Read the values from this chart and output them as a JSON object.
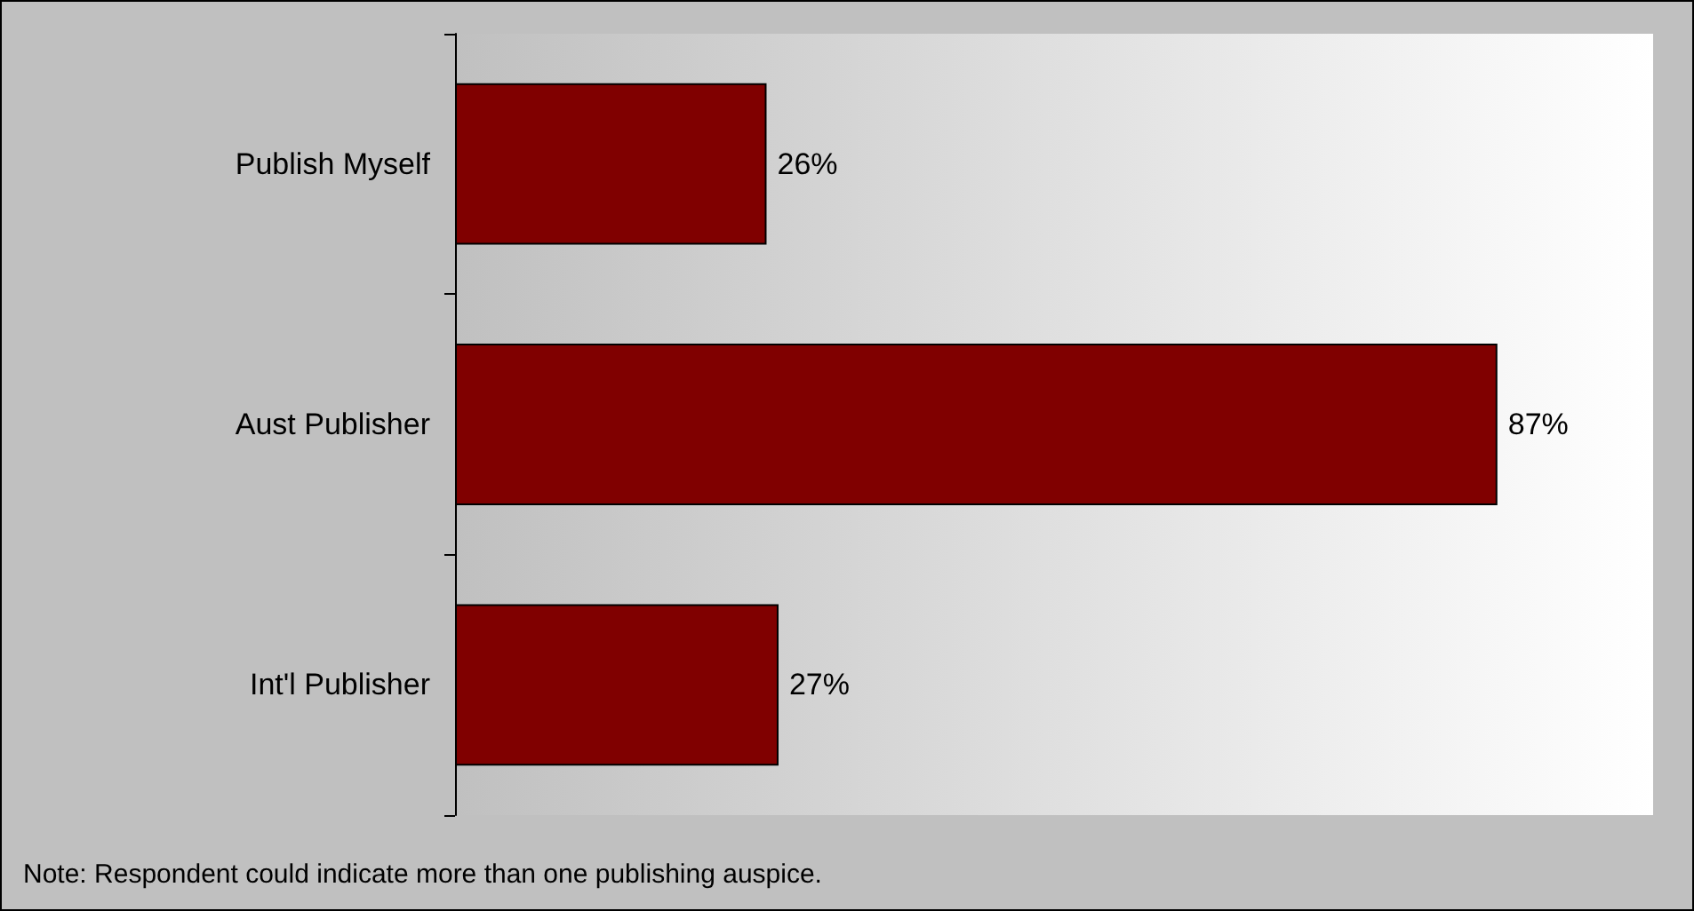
{
  "chart_data": {
    "type": "bar",
    "orientation": "horizontal",
    "categories": [
      "Publish Myself",
      "Aust Publisher",
      "Int'l Publisher"
    ],
    "values": [
      26,
      87,
      27
    ],
    "color": "#800000",
    "value_labels": [
      "26%",
      "87%",
      "27%"
    ],
    "tick_labels": "y",
    "annotations": [
      "Note: Respondent could indicate more than one publishing auspice."
    ]
  }
}
